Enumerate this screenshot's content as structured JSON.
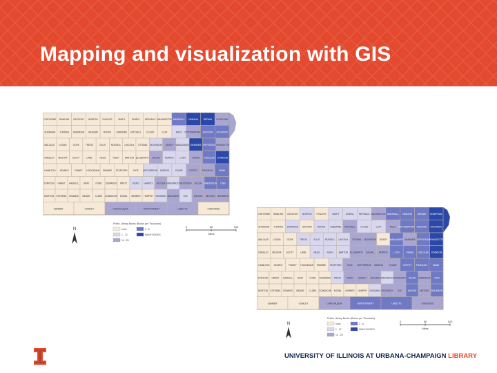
{
  "slide": {
    "title": "Mapping and visualization with GIS",
    "footer": {
      "university": "UNIVERSITY OF ILLINOIS AT URBANA-CHAMPAIGN",
      "library": "LIBRARY"
    }
  },
  "colors": {
    "banner": "#e34a2f",
    "title_text": "#ffffff",
    "footer_navy": "#13294b",
    "footer_orange": "#e84a27",
    "class_none": "#f7e9d8",
    "class_1": "#d9d7ee",
    "class_2": "#a9a6d2",
    "class_3": "#6f79c4",
    "class_4": "#2b48a8"
  },
  "maps": [
    {
      "legend": {
        "title": "Public Library Books (Books per Thousand)",
        "classes": [
          {
            "label": "none",
            "class": 0
          },
          {
            "label": "1 - 12",
            "class": 1
          },
          {
            "label": "13 - 25",
            "class": 2
          },
          {
            "label": "2 - 6",
            "class": 3
          },
          {
            "label": "MANY BOOKS",
            "class": 4
          }
        ]
      },
      "scalebar": {
        "ticks": [
          "0",
          "50",
          "100"
        ],
        "unit": "Miles"
      },
      "north_arrow": "N",
      "rows": [
        {
          "cells": [
            {
              "name": "CHEYENNE",
              "v": 0
            },
            {
              "name": "RAWLINS",
              "v": 0
            },
            {
              "name": "DECATUR",
              "v": 0
            },
            {
              "name": "NORTON",
              "v": 0
            },
            {
              "name": "PHILLIPS",
              "v": 0
            },
            {
              "name": "SMITH",
              "v": 0
            },
            {
              "name": "JEWELL",
              "v": 0
            },
            {
              "name": "REPUBLIC",
              "v": 0
            },
            {
              "name": "WASHINGTON",
              "v": 0
            },
            {
              "name": "MARSHALL",
              "v": 3
            },
            {
              "name": "NEMAHA",
              "v": 4
            },
            {
              "name": "BROWN",
              "v": 4
            },
            {
              "name": "DONIPHAN",
              "v": 2
            }
          ]
        },
        {
          "cells": [
            {
              "name": "SHERMAN",
              "v": 0
            },
            {
              "name": "THOMAS",
              "v": 0
            },
            {
              "name": "SHERIDAN",
              "v": 0
            },
            {
              "name": "GRAHAM",
              "v": 0
            },
            {
              "name": "ROOKS",
              "v": 0
            },
            {
              "name": "OSBORNE",
              "v": 0
            },
            {
              "name": "MITCHELL",
              "v": 0
            },
            {
              "name": "CLOUD",
              "v": 0
            },
            {
              "name": "CLAY",
              "v": 0
            },
            {
              "name": "RILEY",
              "v": 1
            },
            {
              "name": "POTTAWATOMIE",
              "v": 2
            },
            {
              "name": "JACKSON",
              "v": 3
            },
            {
              "name": "ATCHISON",
              "v": 3
            }
          ]
        },
        {
          "cells": [
            {
              "name": "WALLACE",
              "v": 0
            },
            {
              "name": "LOGAN",
              "v": 0
            },
            {
              "name": "GOVE",
              "v": 0
            },
            {
              "name": "TREGO",
              "v": 0
            },
            {
              "name": "ELLIS",
              "v": 0
            },
            {
              "name": "RUSSELL",
              "v": 0
            },
            {
              "name": "LINCOLN",
              "v": 0
            },
            {
              "name": "OTTAWA",
              "v": 0
            },
            {
              "name": "DICKINSON",
              "v": 1
            },
            {
              "name": "GEARY",
              "v": 2
            },
            {
              "name": "WABAUNSEE",
              "v": 1
            },
            {
              "name": "SHAWNEE",
              "v": 4
            },
            {
              "name": "JEFFERSON",
              "v": 3
            },
            {
              "name": "WYANDOTTE",
              "v": 2
            }
          ]
        },
        {
          "cells": [
            {
              "name": "GREELEY",
              "v": 0
            },
            {
              "name": "WICHITA",
              "v": 0
            },
            {
              "name": "SCOTT",
              "v": 0
            },
            {
              "name": "LANE",
              "v": 0
            },
            {
              "name": "NESS",
              "v": 0
            },
            {
              "name": "RUSH",
              "v": 0
            },
            {
              "name": "BARTON",
              "v": 0
            },
            {
              "name": "ELLSWORTH",
              "v": 0
            },
            {
              "name": "SALINE",
              "v": 2
            },
            {
              "name": "MORRIS",
              "v": 1
            },
            {
              "name": "LYON",
              "v": 1
            },
            {
              "name": "OSAGE",
              "v": 2
            },
            {
              "name": "DOUGLAS",
              "v": 3
            },
            {
              "name": "JOHNSON",
              "v": 4
            }
          ]
        },
        {
          "cells": [
            {
              "name": "HAMILTON",
              "v": 0
            },
            {
              "name": "KEARNY",
              "v": 0
            },
            {
              "name": "FINNEY",
              "v": 0
            },
            {
              "name": "HODGEMAN",
              "v": 0
            },
            {
              "name": "PAWNEE",
              "v": 0
            },
            {
              "name": "STAFFORD",
              "v": 0
            },
            {
              "name": "RICE",
              "v": 0
            },
            {
              "name": "MCPHERSON",
              "v": 1
            },
            {
              "name": "MARION",
              "v": 1
            },
            {
              "name": "CHASE",
              "v": 1
            },
            {
              "name": "COFFEY",
              "v": 2
            },
            {
              "name": "FRANKLIN",
              "v": 2
            },
            {
              "name": "MIAMI",
              "v": 3
            }
          ]
        },
        {
          "cells": [
            {
              "name": "STANTON",
              "v": 0
            },
            {
              "name": "GRANT",
              "v": 0
            },
            {
              "name": "HASKELL",
              "v": 0
            },
            {
              "name": "GRAY",
              "v": 0
            },
            {
              "name": "FORD",
              "v": 0
            },
            {
              "name": "EDWARDS",
              "v": 0
            },
            {
              "name": "PRATT",
              "v": 0
            },
            {
              "name": "RENO",
              "v": 1
            },
            {
              "name": "HARVEY",
              "v": 1
            },
            {
              "name": "BUTLER",
              "v": 2
            },
            {
              "name": "GREENWOOD",
              "v": 1
            },
            {
              "name": "WOODSON",
              "v": 2
            },
            {
              "name": "ALLEN",
              "v": 2
            },
            {
              "name": "ANDERSON",
              "v": 3
            },
            {
              "name": "LINN",
              "v": 3
            }
          ]
        },
        {
          "cells": [
            {
              "name": "MORTON",
              "v": 0
            },
            {
              "name": "STEVENS",
              "v": 0
            },
            {
              "name": "SEWARD",
              "v": 0
            },
            {
              "name": "MEADE",
              "v": 0
            },
            {
              "name": "CLARK",
              "v": 0
            },
            {
              "name": "COMANCHE",
              "v": 0
            },
            {
              "name": "KIOWA",
              "v": 0
            },
            {
              "name": "BARBER",
              "v": 0
            },
            {
              "name": "HARPER",
              "v": 0
            },
            {
              "name": "KINGMAN",
              "v": 1
            },
            {
              "name": "SEDGWICK",
              "v": 2
            },
            {
              "name": "ELK",
              "v": 1
            },
            {
              "name": "WILSON",
              "v": 2
            },
            {
              "name": "NEOSHO",
              "v": 2
            },
            {
              "name": "BOURBON",
              "v": 2
            }
          ]
        },
        {
          "cells": [
            {
              "name": "SUMNER",
              "v": 0
            },
            {
              "name": "COWLEY",
              "v": 0
            },
            {
              "name": "CHAUTAUQUA",
              "v": 2
            },
            {
              "name": "MONTGOMERY",
              "v": 2
            },
            {
              "name": "LABETTE",
              "v": 2
            },
            {
              "name": "CHEROKEE",
              "v": 0
            }
          ]
        }
      ]
    },
    {
      "legend": {
        "title": "Public Library Books (Books per Thousand)",
        "classes": [
          {
            "label": "none",
            "class": 0
          },
          {
            "label": "1 - 12",
            "class": 1
          },
          {
            "label": "13 - 25",
            "class": 2
          },
          {
            "label": "2 - 6",
            "class": 3
          },
          {
            "label": "MANY BOOKS",
            "class": 4
          }
        ]
      },
      "scalebar": {
        "ticks": [
          "0",
          "50",
          "100"
        ],
        "unit": "Miles"
      },
      "north_arrow": "N",
      "rows": [
        {
          "cells": [
            {
              "name": "CHEYENNE",
              "v": 0
            },
            {
              "name": "RAWLINS",
              "v": 0
            },
            {
              "name": "DECATUR",
              "v": 0
            },
            {
              "name": "NORTON",
              "v": 1
            },
            {
              "name": "PHILLIPS",
              "v": 0
            },
            {
              "name": "SMITH",
              "v": 1
            },
            {
              "name": "JEWELL",
              "v": 1
            },
            {
              "name": "REPUBLIC",
              "v": 1
            },
            {
              "name": "WASHINGTON",
              "v": 2
            },
            {
              "name": "MARSHALL",
              "v": 3
            },
            {
              "name": "NEMAHA",
              "v": 3
            },
            {
              "name": "BROWN",
              "v": 3
            },
            {
              "name": "DONIPHAN",
              "v": 4
            }
          ]
        },
        {
          "cells": [
            {
              "name": "SHERMAN",
              "v": 0
            },
            {
              "name": "THOMAS",
              "v": 0
            },
            {
              "name": "SHERIDAN",
              "v": 1
            },
            {
              "name": "GRAHAM",
              "v": 0
            },
            {
              "name": "ROOKS",
              "v": 1
            },
            {
              "name": "OSBORNE",
              "v": 1
            },
            {
              "name": "MITCHELL",
              "v": 2
            },
            {
              "name": "CLOUD",
              "v": 1
            },
            {
              "name": "CLAY",
              "v": 1
            },
            {
              "name": "RILEY",
              "v": 2
            },
            {
              "name": "POTTAWATOMIE",
              "v": 3
            },
            {
              "name": "JACKSON",
              "v": 3
            },
            {
              "name": "ATCHISON",
              "v": 4
            }
          ]
        },
        {
          "cells": [
            {
              "name": "WALLACE",
              "v": 0
            },
            {
              "name": "LOGAN",
              "v": 0
            },
            {
              "name": "GOVE",
              "v": 0
            },
            {
              "name": "TREGO",
              "v": 1
            },
            {
              "name": "ELLIS",
              "v": 1
            },
            {
              "name": "RUSSELL",
              "v": 1
            },
            {
              "name": "LINCOLN",
              "v": 1
            },
            {
              "name": "OTTAWA",
              "v": 2
            },
            {
              "name": "DICKINSON",
              "v": 2
            },
            {
              "name": "GEARY",
              "v": 0
            },
            {
              "name": "WABAUNSEE",
              "v": 3
            },
            {
              "name": "SHAWNEE",
              "v": 2
            },
            {
              "name": "JEFFERSON",
              "v": 3
            },
            {
              "name": "WYANDOTTE",
              "v": 4
            }
          ]
        },
        {
          "cells": [
            {
              "name": "GREELEY",
              "v": 0
            },
            {
              "name": "WICHITA",
              "v": 0
            },
            {
              "name": "SCOTT",
              "v": 0
            },
            {
              "name": "LANE",
              "v": 0
            },
            {
              "name": "NESS",
              "v": 1
            },
            {
              "name": "RUSH",
              "v": 1
            },
            {
              "name": "BARTON",
              "v": 1
            },
            {
              "name": "ELLSWORTH",
              "v": 2
            },
            {
              "name": "SALINE",
              "v": 2
            },
            {
              "name": "MORRIS",
              "v": 2
            },
            {
              "name": "LYON",
              "v": 3
            },
            {
              "name": "OSAGE",
              "v": 3
            },
            {
              "name": "DOUGLAS",
              "v": 3
            },
            {
              "name": "JOHNSON",
              "v": 4
            }
          ]
        },
        {
          "cells": [
            {
              "name": "HAMILTON",
              "v": 0
            },
            {
              "name": "KEARNY",
              "v": 0
            },
            {
              "name": "FINNEY",
              "v": 0
            },
            {
              "name": "HODGEMAN",
              "v": 0
            },
            {
              "name": "PAWNEE",
              "v": 0
            },
            {
              "name": "STAFFORD",
              "v": 1
            },
            {
              "name": "RICE",
              "v": 2
            },
            {
              "name": "MCPHERSON",
              "v": 2
            },
            {
              "name": "MARION",
              "v": 2
            },
            {
              "name": "CHASE",
              "v": 2
            },
            {
              "name": "COFFEY",
              "v": 3
            },
            {
              "name": "FRANKLIN",
              "v": 3
            },
            {
              "name": "MIAMI",
              "v": 3
            }
          ]
        },
        {
          "cells": [
            {
              "name": "STANTON",
              "v": 0
            },
            {
              "name": "GRANT",
              "v": 0
            },
            {
              "name": "HASKELL",
              "v": 0
            },
            {
              "name": "GRAY",
              "v": 0
            },
            {
              "name": "FORD",
              "v": 0
            },
            {
              "name": "EDWARDS",
              "v": 0
            },
            {
              "name": "PRATT",
              "v": 1
            },
            {
              "name": "RENO",
              "v": 2
            },
            {
              "name": "HARVEY",
              "v": 2
            },
            {
              "name": "BUTLER",
              "v": 2
            },
            {
              "name": "GREENWOOD",
              "v": 1
            },
            {
              "name": "WOODSON",
              "v": 2
            },
            {
              "name": "ALLEN",
              "v": 3
            },
            {
              "name": "ANDERSON",
              "v": 2
            },
            {
              "name": "LINN",
              "v": 3
            }
          ]
        },
        {
          "cells": [
            {
              "name": "MORTON",
              "v": 0
            },
            {
              "name": "STEVENS",
              "v": 0
            },
            {
              "name": "SEWARD",
              "v": 0
            },
            {
              "name": "MEADE",
              "v": 0
            },
            {
              "name": "CLARK",
              "v": 0
            },
            {
              "name": "COMANCHE",
              "v": 0
            },
            {
              "name": "KIOWA",
              "v": 0
            },
            {
              "name": "BARBER",
              "v": 0
            },
            {
              "name": "HARPER",
              "v": 0
            },
            {
              "name": "KINGMAN",
              "v": 1
            },
            {
              "name": "SEDGWICK",
              "v": 2
            },
            {
              "name": "ELK",
              "v": 2
            },
            {
              "name": "WILSON",
              "v": 3
            },
            {
              "name": "NEOSHO",
              "v": 2
            },
            {
              "name": "BOURBON",
              "v": 3
            }
          ]
        },
        {
          "cells": [
            {
              "name": "SUMNER",
              "v": 0
            },
            {
              "name": "COWLEY",
              "v": 0
            },
            {
              "name": "CHAUTAUQUA",
              "v": 2
            },
            {
              "name": "MONTGOMERY",
              "v": 3
            },
            {
              "name": "LABETTE",
              "v": 3
            },
            {
              "name": "CHEROKEE",
              "v": 2
            }
          ]
        }
      ]
    }
  ]
}
